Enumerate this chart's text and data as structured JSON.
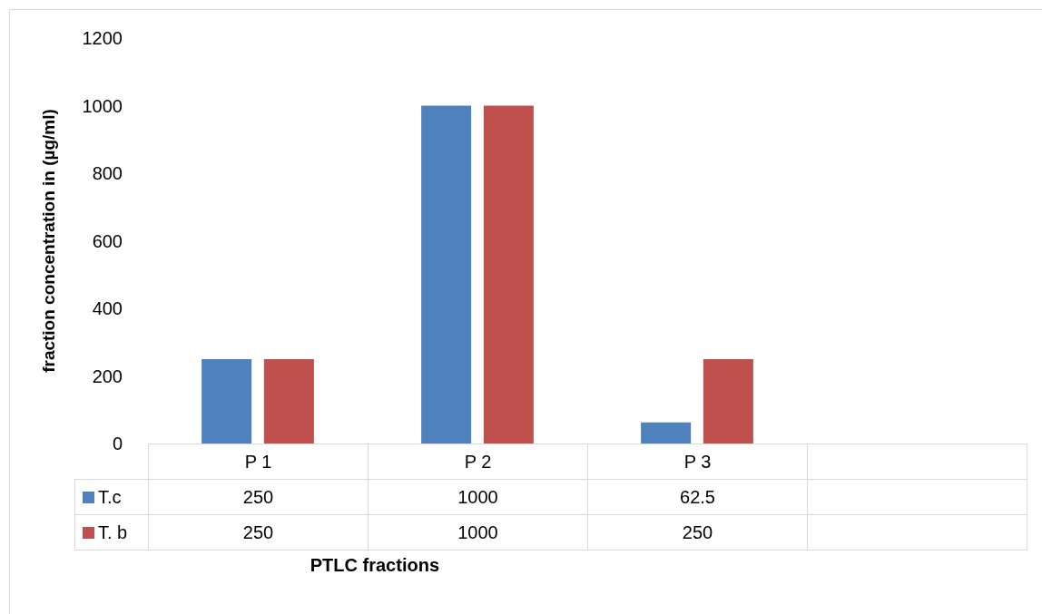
{
  "chart_data": {
    "type": "bar",
    "xlabel": "PTLC  fractions",
    "ylabel": "fraction concentration in (µg/ml)",
    "categories": [
      "P 1",
      "P 2",
      "P 3",
      null
    ],
    "series": [
      {
        "name": "T.c",
        "color": "#4f81bd",
        "values": [
          250,
          1000,
          62.5,
          null
        ]
      },
      {
        "name": "T. b",
        "color": "#c0504d",
        "values": [
          250,
          1000,
          250,
          null
        ]
      }
    ],
    "ylim": [
      0,
      1200
    ],
    "yticks": [
      0,
      200,
      400,
      600,
      800,
      1000,
      1200
    ],
    "grid": false,
    "legend": "bottom left",
    "data_labels": true
  }
}
